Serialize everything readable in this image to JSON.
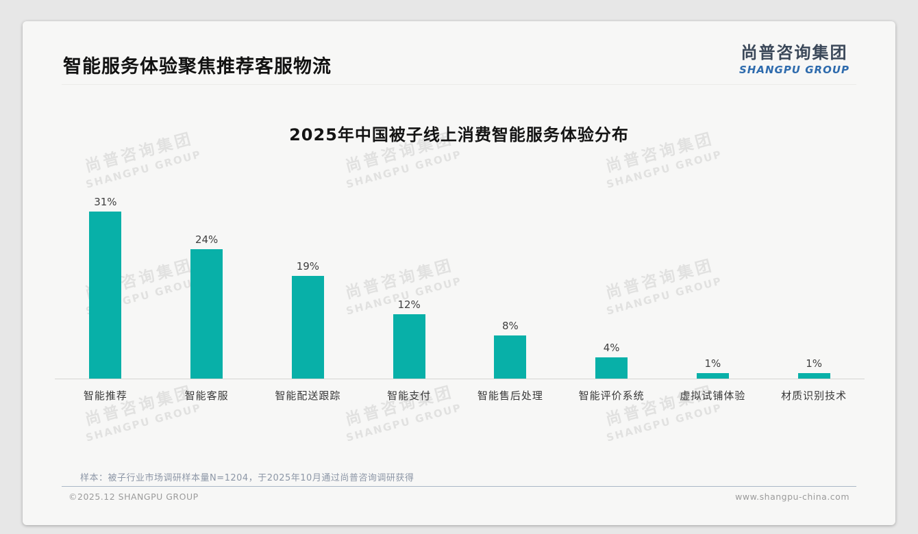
{
  "header": {
    "title": "智能服务体验聚焦推荐客服物流"
  },
  "logo": {
    "cn": "尚普咨询集团",
    "en": "SHANGPU GROUP",
    "cn_color": "#3b4859",
    "en_color": "#2e6bad"
  },
  "watermark": {
    "cn": "尚普咨询集团",
    "en": "SHANGPU GROUP"
  },
  "chart_data": {
    "type": "bar",
    "title": "2025年中国被子线上消费智能服务体验分布",
    "categories": [
      "智能推荐",
      "智能客服",
      "智能配送跟踪",
      "智能支付",
      "智能售后处理",
      "智能评价系统",
      "虚拟试铺体验",
      "材质识别技术"
    ],
    "values": [
      31,
      24,
      19,
      12,
      8,
      4,
      1,
      1
    ],
    "value_labels": [
      "31%",
      "24%",
      "19%",
      "12%",
      "8%",
      "4%",
      "1%",
      "1%"
    ],
    "bar_color": "#08b0a8",
    "xlabel": "",
    "ylabel": "",
    "ylim": [
      0,
      35
    ],
    "grid": false,
    "legend": "none"
  },
  "footnote": "样本：被子行业市场调研样本量N=1204，于2025年10月通过尚普咨询调研获得",
  "footer": {
    "left": "©2025.12 SHANGPU GROUP",
    "right": "www.shangpu-china.com"
  }
}
